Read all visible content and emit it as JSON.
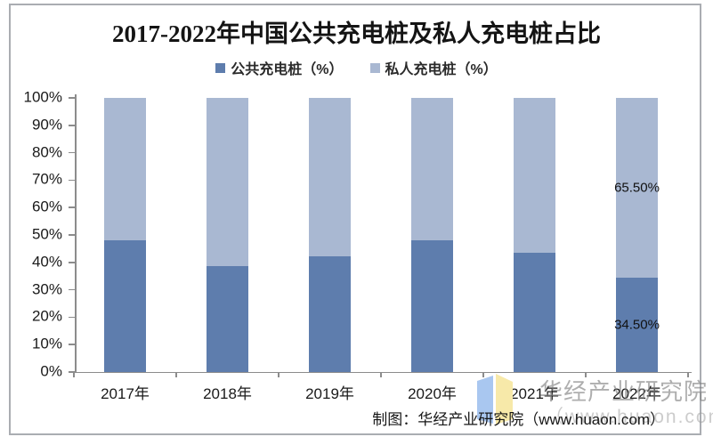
{
  "page": {
    "footer_credit": "制图：华经产业研究院（www.huaon.com）",
    "watermark": {
      "org": "华经产业研究院",
      "url": "（www.huaon.com）",
      "logo_left_page_color": "#a9c7f0",
      "logo_right_page_color": "#f7e9a9"
    },
    "colors": {
      "axis": "#8c8c8c",
      "text": "#1a1a1a",
      "frame_border": "#aaadb2"
    }
  },
  "chart_data": {
    "type": "bar",
    "stacked": true,
    "title": "2017-2022年中国公共充电桩及私人充电桩占比",
    "categories": [
      "2017年",
      "2018年",
      "2019年",
      "2020年",
      "2021年",
      "2022年"
    ],
    "series": [
      {
        "key": "public",
        "name": "公共充电桩（%）",
        "color": "#5e7dad",
        "values": [
          48.0,
          38.6,
          42.3,
          48.0,
          43.6,
          34.5
        ]
      },
      {
        "key": "private",
        "name": "私人充电桩（%）",
        "color": "#a9b8d2",
        "values": [
          52.0,
          61.4,
          57.7,
          52.0,
          56.4,
          65.5
        ]
      }
    ],
    "data_labels": [
      {
        "category": "2022年",
        "labels": [
          "34.50%",
          "65.50%"
        ]
      }
    ],
    "xlabel": "",
    "ylabel": "",
    "ylim": [
      0,
      100
    ],
    "y_tick_labels": [
      "0%",
      "10%",
      "20%",
      "30%",
      "40%",
      "50%",
      "60%",
      "70%",
      "80%",
      "90%",
      "100%"
    ],
    "grid": false,
    "legend_position": "top-center"
  }
}
